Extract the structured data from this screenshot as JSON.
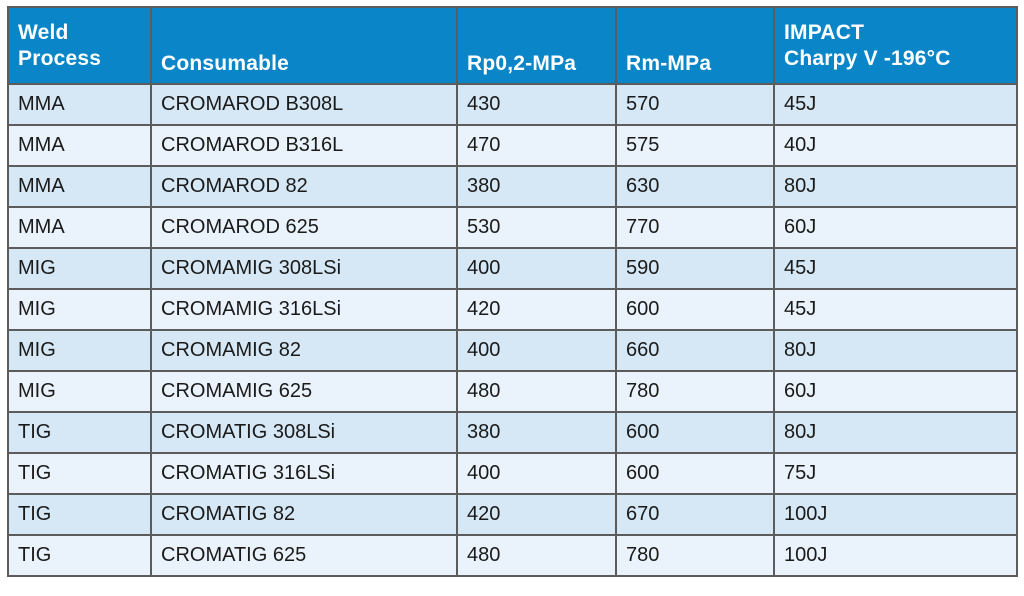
{
  "table": {
    "headers": [
      [
        "Weld",
        "Process"
      ],
      [
        "Consumable"
      ],
      [
        "Rp0,2-MPa"
      ],
      [
        "Rm-MPa"
      ],
      [
        "IMPACT",
        "Charpy V -196°C"
      ]
    ],
    "rows": [
      [
        "MMA",
        "CROMAROD B308L",
        "430",
        "570",
        "45J"
      ],
      [
        "MMA",
        "CROMAROD B316L",
        "470",
        "575",
        "40J"
      ],
      [
        "MMA",
        "CROMAROD 82",
        "380",
        "630",
        "80J"
      ],
      [
        "MMA",
        "CROMAROD 625",
        "530",
        "770",
        "60J"
      ],
      [
        "MIG",
        "CROMAMIG 308LSi",
        "400",
        "590",
        "45J"
      ],
      [
        "MIG",
        "CROMAMIG 316LSi",
        "420",
        "600",
        "45J"
      ],
      [
        "MIG",
        "CROMAMIG 82",
        "400",
        "660",
        "80J"
      ],
      [
        "MIG",
        "CROMAMIG 625",
        "480",
        "780",
        "60J"
      ],
      [
        "TIG",
        "CROMATIG 308LSi",
        "380",
        "600",
        "80J"
      ],
      [
        "TIG",
        "CROMATIG 316LSi",
        "400",
        "600",
        "75J"
      ],
      [
        "TIG",
        "CROMATIG 82",
        "420",
        "670",
        "100J"
      ],
      [
        "TIG",
        "CROMATIG 625",
        "480",
        "780",
        "100J"
      ]
    ]
  },
  "colors": {
    "header_bg": "#0a86c8",
    "header_text": "#ffffff",
    "row_odd_bg": "#d6e8f5",
    "row_even_bg": "#eaf3fb",
    "border": "#5c5c5c"
  }
}
